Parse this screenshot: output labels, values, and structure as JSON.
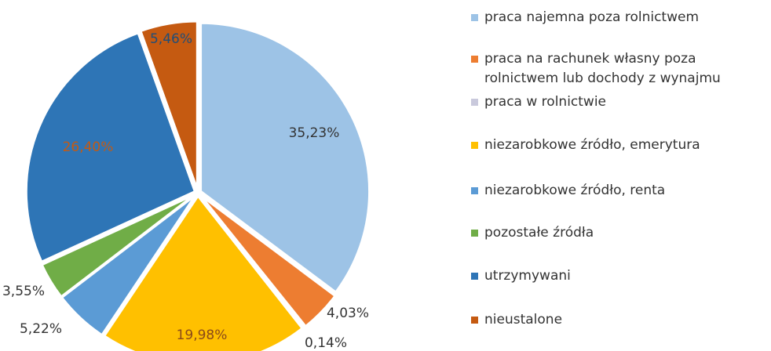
{
  "chart_data": {
    "type": "pie",
    "categories": [
      "praca najemna poza rolnictwem",
      "praca na rachunek własny poza rolnictwem lub dochody z wynajmu",
      "praca w rolnictwie",
      "niezarobkowe źródło, emerytura",
      "niezarobkowe źródło, renta",
      "pozostałe źródła",
      "utrzymywani",
      "nieustalone"
    ],
    "values": [
      35.23,
      4.03,
      0.14,
      19.98,
      5.22,
      3.55,
      26.4,
      5.46
    ],
    "value_labels": [
      "35,23%",
      "4,03%",
      "0,14%",
      "19,98%",
      "5,22%",
      "3,55%",
      "26,40%",
      "5,46%"
    ],
    "colors": [
      "#9dc3e6",
      "#ed7d31",
      "#c9c9dc",
      "#ffc000",
      "#5b9bd5",
      "#70ad47",
      "#2e75b6",
      "#c55a11"
    ],
    "legend": "right"
  }
}
